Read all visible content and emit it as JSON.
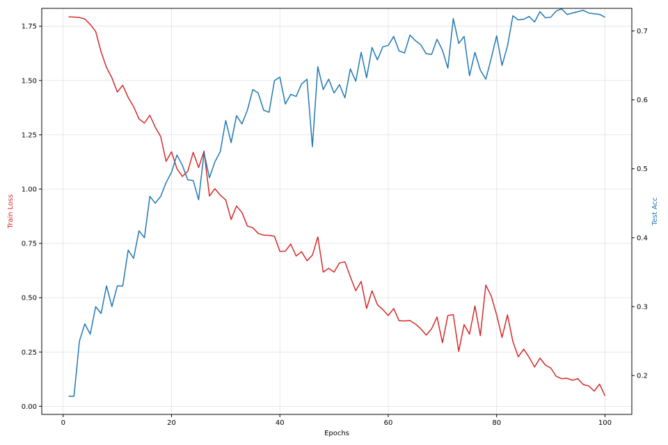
{
  "chart_data": {
    "type": "line",
    "xlabel": "Epochs",
    "y_left_label": "Train Loss",
    "y_right_label": "Test Acc",
    "grid": true,
    "xlim": [
      -3.95,
      104.95
    ],
    "ylim_left": [
      -0.0373,
      1.8322
    ],
    "ylim_right": [
      0.1436,
      0.7328
    ],
    "x_ticks": [
      0,
      20,
      40,
      60,
      80,
      100
    ],
    "y_left_ticks": [
      0.0,
      0.25,
      0.5,
      0.75,
      1.0,
      1.25,
      1.5,
      1.75
    ],
    "y_right_ticks": [
      0.2,
      0.3,
      0.4,
      0.5,
      0.6,
      0.7
    ],
    "colors": {
      "train_loss": "#d62728",
      "test_acc": "#1f77b4",
      "grid": "#e0e0e0",
      "axis": "#000000"
    },
    "x": [
      1,
      2,
      3,
      4,
      5,
      6,
      7,
      8,
      9,
      10,
      11,
      12,
      13,
      14,
      15,
      16,
      17,
      18,
      19,
      20,
      21,
      22,
      23,
      24,
      25,
      26,
      27,
      28,
      29,
      30,
      31,
      32,
      33,
      34,
      35,
      36,
      37,
      38,
      39,
      40,
      41,
      42,
      43,
      44,
      45,
      46,
      47,
      48,
      49,
      50,
      51,
      52,
      53,
      54,
      55,
      56,
      57,
      58,
      59,
      60,
      61,
      62,
      63,
      64,
      65,
      66,
      67,
      68,
      69,
      70,
      71,
      72,
      73,
      74,
      75,
      76,
      77,
      78,
      79,
      80,
      81,
      82,
      83,
      84,
      85,
      86,
      87,
      88,
      89,
      90,
      91,
      92,
      93,
      94,
      95,
      96,
      97,
      98,
      99,
      100
    ],
    "series": [
      {
        "name": "Train Loss",
        "axis": "left",
        "values": [
          1.793,
          1.792,
          1.79,
          1.783,
          1.758,
          1.726,
          1.632,
          1.56,
          1.512,
          1.447,
          1.478,
          1.422,
          1.38,
          1.323,
          1.304,
          1.34,
          1.285,
          1.242,
          1.128,
          1.172,
          1.094,
          1.058,
          1.082,
          1.169,
          1.099,
          1.175,
          0.968,
          1.002,
          0.972,
          0.95,
          0.86,
          0.922,
          0.892,
          0.83,
          0.822,
          0.796,
          0.788,
          0.787,
          0.783,
          0.713,
          0.714,
          0.747,
          0.692,
          0.712,
          0.67,
          0.696,
          0.78,
          0.618,
          0.635,
          0.618,
          0.66,
          0.665,
          0.597,
          0.532,
          0.575,
          0.45,
          0.532,
          0.468,
          0.445,
          0.418,
          0.45,
          0.394,
          0.393,
          0.395,
          0.379,
          0.357,
          0.328,
          0.357,
          0.411,
          0.293,
          0.418,
          0.422,
          0.253,
          0.376,
          0.332,
          0.462,
          0.325,
          0.558,
          0.508,
          0.421,
          0.317,
          0.421,
          0.298,
          0.228,
          0.263,
          0.226,
          0.181,
          0.222,
          0.19,
          0.176,
          0.138,
          0.127,
          0.129,
          0.12,
          0.127,
          0.1,
          0.094,
          0.07,
          0.102,
          0.048
        ]
      },
      {
        "name": "Test Acc",
        "axis": "right",
        "values": [
          0.17,
          0.17,
          0.25,
          0.275,
          0.26,
          0.3,
          0.29,
          0.33,
          0.3,
          0.33,
          0.33,
          0.382,
          0.37,
          0.41,
          0.4,
          0.46,
          0.45,
          0.46,
          0.48,
          0.495,
          0.52,
          0.505,
          0.484,
          0.483,
          0.455,
          0.523,
          0.487,
          0.51,
          0.525,
          0.57,
          0.538,
          0.577,
          0.565,
          0.585,
          0.615,
          0.61,
          0.585,
          0.582,
          0.628,
          0.633,
          0.594,
          0.608,
          0.605,
          0.623,
          0.63,
          0.532,
          0.648,
          0.615,
          0.63,
          0.61,
          0.622,
          0.603,
          0.645,
          0.627,
          0.669,
          0.632,
          0.676,
          0.658,
          0.677,
          0.679,
          0.692,
          0.671,
          0.668,
          0.694,
          0.686,
          0.68,
          0.667,
          0.666,
          0.688,
          0.672,
          0.646,
          0.718,
          0.682,
          0.692,
          0.635,
          0.669,
          0.643,
          0.63,
          0.66,
          0.693,
          0.65,
          0.678,
          0.722,
          0.716,
          0.717,
          0.721,
          0.713,
          0.728,
          0.719,
          0.72,
          0.729,
          0.732,
          0.724,
          0.726,
          0.728,
          0.73,
          0.726,
          0.725,
          0.724,
          0.72
        ]
      }
    ]
  }
}
